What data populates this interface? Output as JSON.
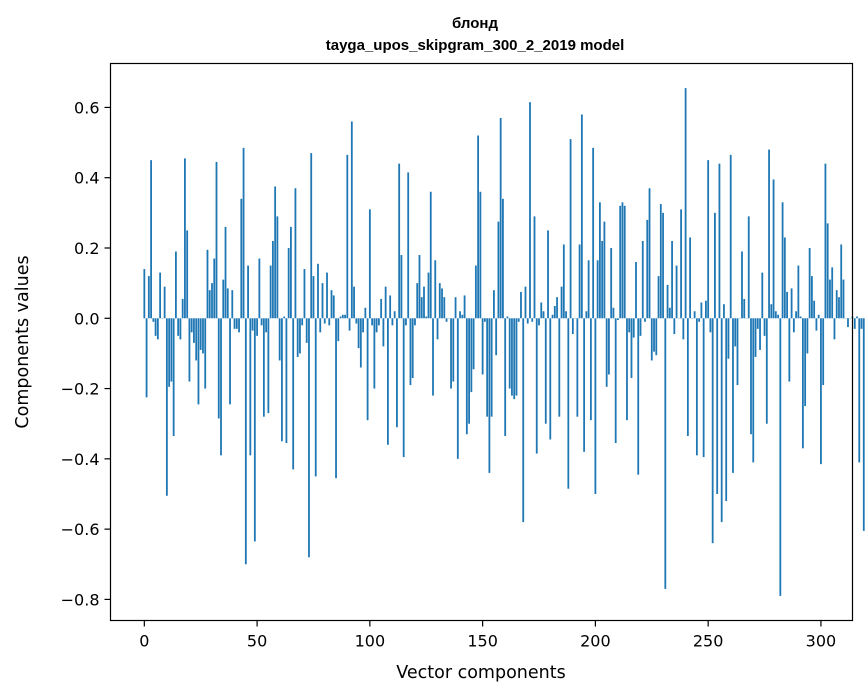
{
  "chart_data": {
    "type": "bar",
    "title": "блонд",
    "subtitle": "tayga_upos_skipgram_300_2_2019 model",
    "xlabel": "Vector components",
    "ylabel": "Components values",
    "xlim": [
      -15,
      314
    ],
    "ylim": [
      -0.86,
      0.725
    ],
    "xticks": [
      0,
      50,
      100,
      150,
      200,
      250,
      300
    ],
    "yticks": [
      -0.8,
      -0.6,
      -0.4,
      -0.2,
      0.0,
      0.2,
      0.4,
      0.6
    ],
    "xtick_labels": [
      "0",
      "50",
      "100",
      "150",
      "200",
      "250",
      "300"
    ],
    "ytick_labels": [
      "−0.8",
      "−0.6",
      "−0.4",
      "−0.2",
      "0.0",
      "0.2",
      "0.4",
      "0.6"
    ],
    "grid": false,
    "bar_color": "#1f77b4",
    "values": [
      0.14,
      -0.225,
      0.12,
      0.45,
      -0.01,
      -0.05,
      -0.06,
      0.13,
      0.0,
      0.09,
      -0.505,
      -0.195,
      -0.18,
      -0.335,
      0.19,
      -0.05,
      -0.06,
      0.055,
      0.455,
      0.25,
      -0.18,
      -0.04,
      -0.07,
      -0.12,
      -0.245,
      -0.09,
      -0.1,
      -0.2,
      0.195,
      0.08,
      0.1,
      0.17,
      0.445,
      -0.285,
      -0.39,
      0.11,
      0.26,
      0.085,
      -0.245,
      0.08,
      -0.03,
      -0.03,
      -0.04,
      0.34,
      0.485,
      -0.7,
      0.15,
      -0.39,
      -0.035,
      -0.635,
      -0.05,
      0.17,
      -0.02,
      -0.28,
      -0.04,
      -0.27,
      0.15,
      0.22,
      0.375,
      0.29,
      -0.12,
      -0.35,
      0.005,
      -0.355,
      0.2,
      0.26,
      -0.43,
      0.37,
      -0.11,
      -0.1,
      -0.02,
      0.14,
      -0.07,
      -0.68,
      0.47,
      0.12,
      -0.45,
      0.155,
      -0.04,
      0.1,
      -0.015,
      0.13,
      -0.02,
      0.08,
      0.065,
      -0.455,
      -0.065,
      0.005,
      0.01,
      0.01,
      0.465,
      -0.035,
      0.56,
      0.09,
      -0.015,
      -0.085,
      -0.14,
      -0.04,
      0.03,
      -0.29,
      0.31,
      -0.02,
      -0.2,
      -0.04,
      -0.02,
      0.055,
      -0.08,
      0.09,
      -0.36,
      0.065,
      -0.02,
      0.02,
      -0.31,
      0.44,
      0.18,
      -0.395,
      -0.02,
      0.415,
      -0.19,
      -0.17,
      -0.02,
      0.1,
      0.18,
      0.06,
      0.09,
      0.005,
      0.13,
      0.36,
      -0.22,
      0.165,
      -0.06,
      0.1,
      0.085,
      0.06,
      -0.01,
      0.0,
      -0.2,
      -0.18,
      0.06,
      -0.4,
      0.02,
      0.01,
      0.065,
      -0.33,
      -0.3,
      -0.21,
      -0.145,
      0.15,
      0.52,
      0.36,
      -0.16,
      -0.01,
      -0.28,
      -0.44,
      -0.28,
      0.08,
      -0.105,
      0.275,
      0.57,
      0.34,
      -0.335,
      0.005,
      -0.2,
      -0.22,
      -0.23,
      -0.22,
      -0.01,
      0.075,
      -0.58,
      0.09,
      -0.015,
      0.615,
      -0.01,
      0.29,
      -0.385,
      -0.02,
      0.045,
      0.02,
      -0.3,
      0.25,
      -0.345,
      0.01,
      0.035,
      0.06,
      -0.28,
      0.09,
      0.21,
      0.02,
      -0.485,
      0.51,
      -0.045,
      0.0,
      -0.28,
      0.21,
      0.58,
      -0.38,
      0.02,
      0.165,
      -0.29,
      0.485,
      -0.5,
      0.165,
      0.33,
      0.22,
      0.275,
      -0.195,
      -0.16,
      0.2,
      0.03,
      -0.355,
      -0.005,
      0.32,
      0.33,
      0.32,
      -0.29,
      -0.04,
      -0.17,
      -0.055,
      0.16,
      -0.445,
      -0.05,
      0.22,
      -0.01,
      0.28,
      0.37,
      -0.12,
      -0.095,
      -0.105,
      0.12,
      0.325,
      0.3,
      -0.77,
      0.095,
      0.03,
      0.22,
      -0.045,
      0.15,
      0.0,
      0.31,
      -0.06,
      0.655,
      -0.335,
      0.23,
      0.0,
      0.02,
      -0.39,
      -0.01,
      0.045,
      -0.395,
      0.05,
      0.45,
      -0.04,
      -0.64,
      0.3,
      -0.5,
      0.44,
      -0.58,
      0.04,
      -0.52,
      -0.115,
      0.465,
      -0.44,
      -0.08,
      -0.19,
      0.0,
      0.19,
      0.055,
      0.0,
      0.29,
      -0.33,
      -0.41,
      -0.11,
      -0.03,
      -0.09,
      0.13,
      -0.05,
      -0.3,
      0.48,
      0.04,
      0.395,
      0.02,
      0.01,
      -0.79,
      0.33,
      0.23,
      0.075,
      -0.18,
      0.085,
      -0.04,
      0.02,
      0.15,
      0.005,
      -0.37,
      -0.25,
      -0.1,
      0.2,
      0.12,
      0.05,
      -0.035,
      0.01,
      -0.415,
      -0.19,
      0.44,
      0.27,
      0.11,
      0.145,
      -0.06,
      0.08,
      0.06,
      0.21,
      0.11,
      0.0,
      -0.025,
      0.0,
      0.005,
      -0.03,
      0.005,
      -0.41,
      -0.03,
      -0.605
    ]
  }
}
